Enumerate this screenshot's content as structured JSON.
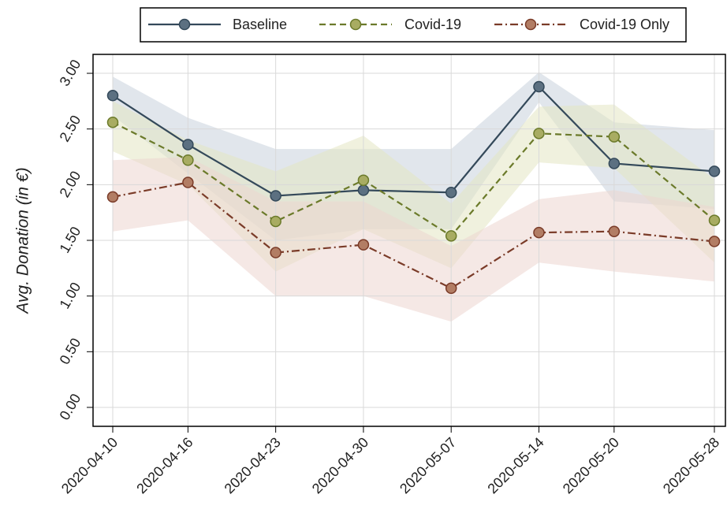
{
  "chart_data": {
    "type": "line",
    "y_label": "Avg. Donation (in €)",
    "x": [
      "2020-04-10",
      "2020-04-16",
      "2020-04-23",
      "2020-04-30",
      "2020-05-07",
      "2020-05-14",
      "2020-05-20",
      "2020-05-28"
    ],
    "ylim": [
      -0.17,
      3.17
    ],
    "yticks": [
      {
        "value": 0,
        "label": "0.00"
      },
      {
        "value": 0.5,
        "label": "0.50"
      },
      {
        "value": 1,
        "label": "1.00"
      },
      {
        "value": 1.5,
        "label": "1.50"
      },
      {
        "value": 2,
        "label": "2.00"
      },
      {
        "value": 2.5,
        "label": "2.50"
      },
      {
        "value": 3,
        "label": "3.00"
      }
    ],
    "grid": true,
    "legend": "top",
    "series": [
      {
        "name": "Baseline",
        "color": "#34495a",
        "marker_color": "#5c7081",
        "band_color": "#c9d2dc",
        "dash": "solid",
        "values": [
          2.8,
          2.36,
          1.9,
          1.95,
          1.93,
          2.88,
          2.19,
          2.12
        ],
        "lower": [
          2.62,
          2.1,
          1.5,
          1.6,
          1.6,
          2.74,
          1.85,
          1.78
        ],
        "upper": [
          2.97,
          2.6,
          2.32,
          2.32,
          2.32,
          3.01,
          2.56,
          2.49
        ]
      },
      {
        "name": "Covid-19",
        "color": "#6b7a2a",
        "marker_color": "#a8ac62",
        "band_color": "#e4e5c2",
        "dash": "dashed",
        "values": [
          2.56,
          2.22,
          1.67,
          2.04,
          1.54,
          2.46,
          2.43,
          1.68
        ],
        "lower": [
          2.3,
          2.0,
          1.22,
          1.6,
          1.25,
          2.2,
          2.15,
          1.3
        ],
        "upper": [
          2.75,
          2.4,
          2.12,
          2.44,
          1.83,
          2.7,
          2.72,
          2.05
        ]
      },
      {
        "name": "Covid-19 Only",
        "color": "#7a3b28",
        "marker_color": "#b27d64",
        "band_color": "#ecd5cf",
        "dash": "dashdot",
        "values": [
          1.89,
          2.02,
          1.39,
          1.46,
          1.07,
          1.57,
          1.58,
          1.49
        ],
        "lower": [
          1.58,
          1.68,
          1.0,
          1.0,
          0.77,
          1.3,
          1.22,
          1.13
        ],
        "upper": [
          2.22,
          2.25,
          1.85,
          1.85,
          1.45,
          1.87,
          1.95,
          1.8
        ]
      }
    ]
  }
}
